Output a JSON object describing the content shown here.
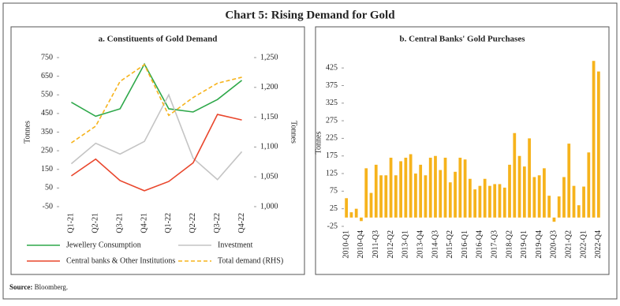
{
  "title": "Chart 5: Rising Demand for Gold",
  "source": {
    "label": "Source:",
    "text": "Bloomberg."
  },
  "chart_data": [
    {
      "type": "line",
      "title": "a. Constituents of Gold Demand",
      "categories": [
        "Q1-21",
        "Q2-21",
        "Q3-21",
        "Q4-21",
        "Q1-22",
        "Q2-22",
        "Q3-22",
        "Q4-22"
      ],
      "ylabel": "Tonnes",
      "y2label": "Tonnes",
      "ylim": [
        -50,
        750
      ],
      "yticks": [
        -50,
        50,
        150,
        250,
        350,
        450,
        550,
        650,
        750
      ],
      "y2lim": [
        1000,
        1250
      ],
      "y2ticks": [
        {
          "value": 1000,
          "label": "1,000"
        },
        {
          "value": 1050,
          "label": "1,050"
        },
        {
          "value": 1100,
          "label": "1,100"
        },
        {
          "value": 1150,
          "label": "1,150"
        },
        {
          "value": 1200,
          "label": "1,200"
        },
        {
          "value": 1250,
          "label": "1,250"
        }
      ],
      "series": [
        {
          "name": "Jewellery Consumption",
          "color": "#2ea84a",
          "values": [
            510,
            435,
            475,
            715,
            475,
            458,
            525,
            628
          ]
        },
        {
          "name": "Investment",
          "color": "#c4c4c4",
          "values": [
            180,
            290,
            232,
            300,
            550,
            210,
            95,
            245
          ]
        },
        {
          "name": "Central banks & Other Institutions",
          "color": "#e9462c",
          "values": [
            115,
            205,
            90,
            35,
            85,
            185,
            445,
            415
          ]
        },
        {
          "name": "Total demand (RHS)",
          "color": "#f6b31c",
          "dashed": true,
          "axis": "y2",
          "values": [
            1107,
            1135,
            1210,
            1238,
            1153,
            1183,
            1207,
            1217
          ]
        }
      ]
    },
    {
      "type": "bar",
      "title": "b. Central Banks' Gold Purchases",
      "ylabel": "Tonnes",
      "color": "#f6b31c",
      "categories": [
        "2010-Q1",
        null,
        null,
        "2010-Q4",
        null,
        null,
        "2011-Q3",
        null,
        null,
        "2012-Q2",
        null,
        null,
        "2013-Q1",
        null,
        null,
        "2013-Q4",
        null,
        null,
        "2014-Q3",
        null,
        null,
        "2015-Q2",
        null,
        null,
        "2016-Q1",
        null,
        null,
        "2016-Q4",
        null,
        null,
        "2017-Q3",
        null,
        null,
        "2018-Q2",
        null,
        null,
        "2019-Q1",
        null,
        null,
        "2019-Q4",
        null,
        null,
        "2020-Q3",
        null,
        null,
        "2021-Q2",
        null,
        null,
        "2022-Q1",
        null,
        null,
        "2022-Q4"
      ],
      "values": [
        55,
        15,
        25,
        -10,
        140,
        70,
        150,
        120,
        120,
        170,
        120,
        160,
        170,
        180,
        125,
        150,
        120,
        170,
        175,
        135,
        170,
        100,
        130,
        170,
        165,
        110,
        80,
        90,
        110,
        90,
        95,
        95,
        85,
        150,
        240,
        175,
        145,
        225,
        115,
        120,
        140,
        62,
        -12,
        60,
        115,
        210,
        90,
        35,
        88,
        185,
        445,
        415
      ],
      "ylim": [
        -25,
        450
      ],
      "yticks": [
        -25,
        25,
        75,
        125,
        175,
        225,
        275,
        325,
        375,
        425
      ]
    }
  ]
}
